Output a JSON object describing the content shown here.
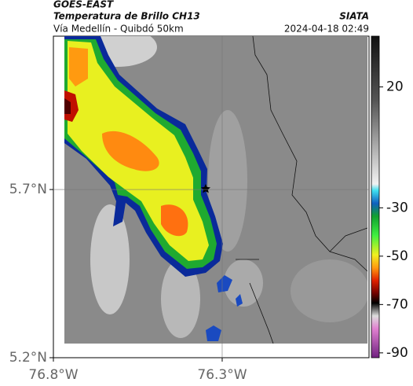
{
  "header": {
    "title": "GOES-EAST",
    "subtitle": "Temperatura de Brillo CH13",
    "route": "Vía Medellín - Quibdó 50km",
    "source": "SIATA",
    "timestamp": "2024-04-18 02:49"
  },
  "map": {
    "xlim": [
      -76.8,
      -75.865
    ],
    "ylim": [
      5.2,
      6.156
    ],
    "xticks": [
      {
        "value": -76.8,
        "label": "76.8°W"
      },
      {
        "value": -76.3,
        "label": "76.3°W"
      }
    ],
    "yticks": [
      {
        "value": 5.2,
        "label": "5.2°N"
      },
      {
        "value": 5.7,
        "label": "5.7°N"
      }
    ],
    "grid": true
  },
  "colorbar": {
    "lim": [
      -92,
      41
    ],
    "ticks": [
      20,
      -30,
      -50,
      -70,
      -90
    ]
  }
}
